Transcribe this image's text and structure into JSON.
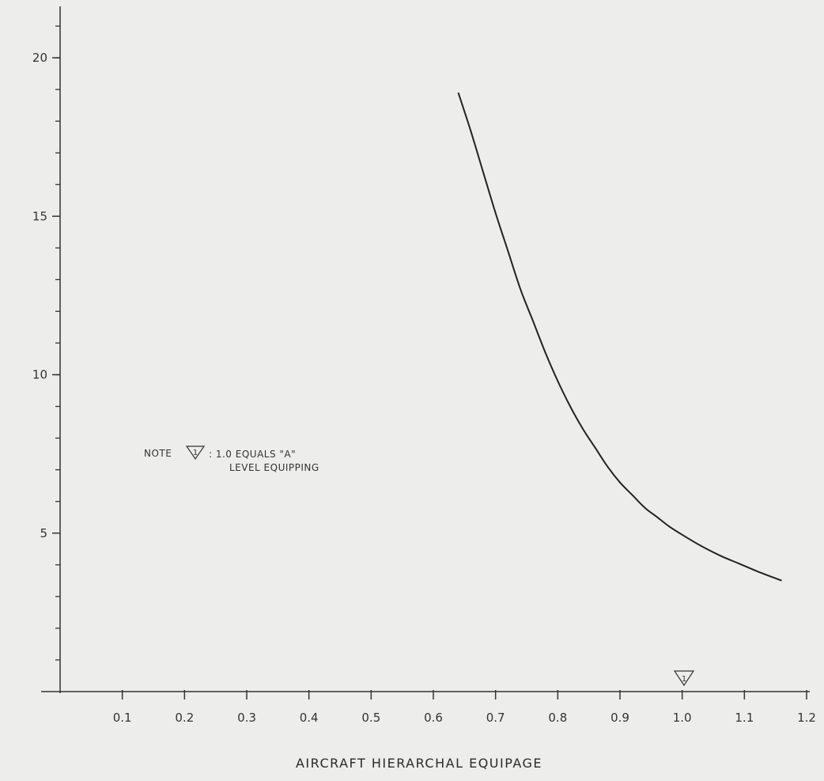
{
  "chart_data": {
    "type": "line",
    "title": "",
    "xlabel": "AIRCRAFT HIERARCHAL EQUIPAGE",
    "ylabel": "",
    "xlim": [
      0,
      1.2
    ],
    "ylim": [
      0,
      21
    ],
    "x_ticks": [
      "0.1",
      "0.2",
      "0.3",
      "0.4",
      "0.5",
      "0.6",
      "0.7",
      "0.8",
      "0.9",
      "1.0",
      "1.1",
      "1.2"
    ],
    "y_ticks": [
      "5",
      "10",
      "15",
      "20"
    ],
    "grid": false,
    "series": [
      {
        "x": [
          0.64,
          0.66,
          0.68,
          0.7,
          0.72,
          0.74,
          0.76,
          0.78,
          0.8,
          0.82,
          0.84,
          0.86,
          0.88,
          0.9,
          0.92,
          0.94,
          0.96,
          0.98,
          1.0,
          1.03,
          1.06,
          1.09,
          1.12,
          1.16
        ],
        "y": [
          18.9,
          17.7,
          16.4,
          15.1,
          13.9,
          12.7,
          11.7,
          10.7,
          9.8,
          9.0,
          8.3,
          7.7,
          7.1,
          6.6,
          6.2,
          5.8,
          5.5,
          5.2,
          4.95,
          4.6,
          4.3,
          4.05,
          3.8,
          3.5
        ]
      }
    ],
    "marker": {
      "x": 1.0,
      "label": "1"
    },
    "note": {
      "prefix": "NOTE",
      "marker": "1",
      "line1": ": 1.0 EQUALS \"A\"",
      "line2": "LEVEL EQUIPPING"
    }
  }
}
